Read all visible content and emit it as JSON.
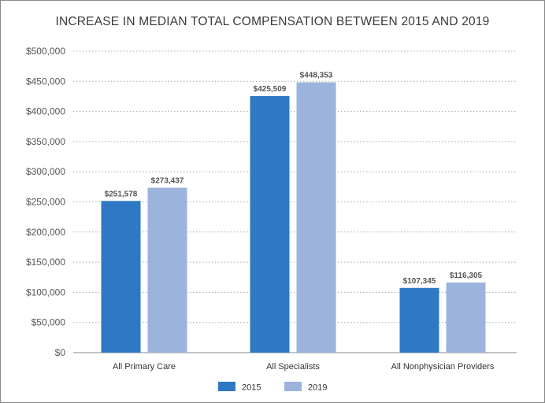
{
  "chart_data": {
    "type": "bar",
    "title": "INCREASE IN MEDIAN TOTAL COMPENSATION BETWEEN 2015 AND 2019",
    "categories": [
      "All Primary Care",
      "All Specialists",
      "All Nonphysician Providers"
    ],
    "series": [
      {
        "name": "2015",
        "color": "#2f78c4",
        "values": [
          251578,
          425509,
          107345
        ],
        "value_labels": [
          "$251,578",
          "$425,509",
          "$107,345"
        ]
      },
      {
        "name": "2019",
        "color": "#9bb3dd",
        "values": [
          273437,
          448353,
          116305
        ],
        "value_labels": [
          "$273,437",
          "$448,353",
          "$116,305"
        ]
      }
    ],
    "ylim": [
      0,
      500000
    ],
    "yticks": [
      0,
      50000,
      100000,
      150000,
      200000,
      250000,
      300000,
      350000,
      400000,
      450000,
      500000
    ],
    "ytick_labels": [
      "$0",
      "$50,000",
      "$100,000",
      "$150,000",
      "$200,000",
      "$250,000",
      "$300,000",
      "$350,000",
      "$400,000",
      "$450,000",
      "$500,000"
    ],
    "grid": true,
    "legend_position": "bottom-center"
  }
}
